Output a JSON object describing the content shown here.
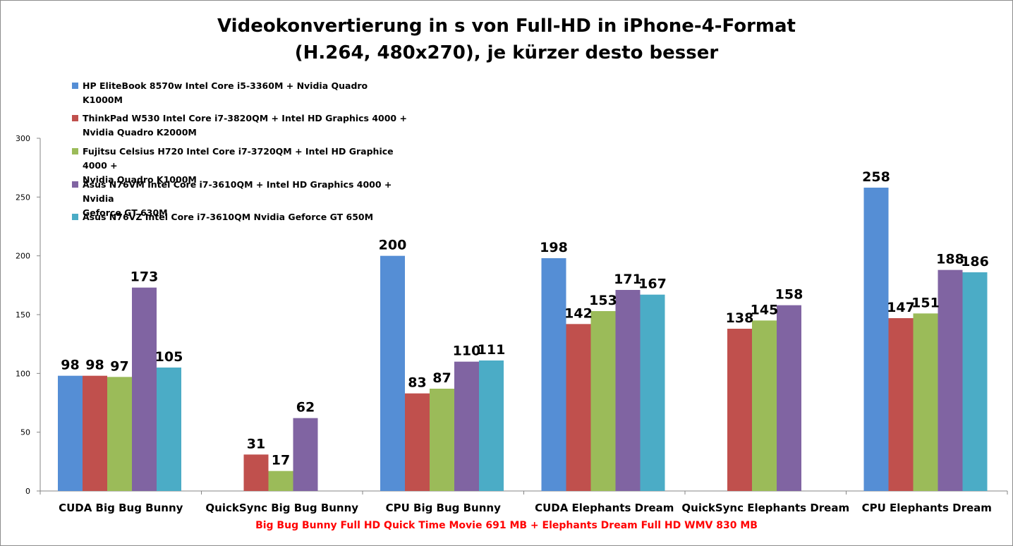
{
  "chart_data": {
    "type": "bar",
    "title_lines": [
      "Videokonvertierung in s von Full-HD in iPhone-4-Format",
      "(H.264, 480x270), je kürzer desto besser"
    ],
    "categories": [
      "CUDA Big Bug Bunny",
      "QuickSync Big Bug Bunny",
      "CPU Big Bug Bunny",
      "CUDA Elephants Dream",
      "QuickSync Elephants Dream",
      "CPU Elephants Dream"
    ],
    "series": [
      {
        "name_lines": [
          "HP EliteBook 8570w Intel Core i5-3360M + Nvidia Quadro K1000M"
        ],
        "color": "#558ed5",
        "values": [
          98,
          null,
          200,
          198,
          null,
          258
        ]
      },
      {
        "name_lines": [
          "ThinkPad W530 Intel Core i7-3820QM + Intel HD Graphics 4000 +",
          "Nvidia Quadro K2000M"
        ],
        "color": "#c0504d",
        "values": [
          98,
          31,
          83,
          142,
          138,
          147
        ]
      },
      {
        "name_lines": [
          "Fujitsu Celsius H720 Intel Core i7-3720QM + Intel HD Graphice 4000 +",
          "Nvidia Quadro K1000M"
        ],
        "color": "#9bbb59",
        "values": [
          97,
          17,
          87,
          153,
          145,
          151
        ]
      },
      {
        "name_lines": [
          "Asus N76VM Intel Core i7-3610QM + Intel HD Graphics 4000 + Nvidia",
          "Geforce GT 630M"
        ],
        "color": "#8064a2",
        "values": [
          173,
          62,
          110,
          171,
          158,
          188
        ]
      },
      {
        "name_lines": [
          "Asus N76VZ Intel Core i7-3610QM Nvidia Geforce GT 650M"
        ],
        "color": "#4bacc6",
        "values": [
          105,
          null,
          111,
          167,
          null,
          186
        ]
      }
    ],
    "yticks": [
      "0",
      "50",
      "100",
      "150",
      "200",
      "250",
      "300"
    ],
    "ylim": [
      0,
      300
    ],
    "grid": false,
    "legend_position": "top-left",
    "footnote": "Big Bug Bunny Full HD Quick Time Movie 691 MB + Elephants Dream Full HD WMV 830 MB",
    "footnote_color": "#ff0000"
  }
}
